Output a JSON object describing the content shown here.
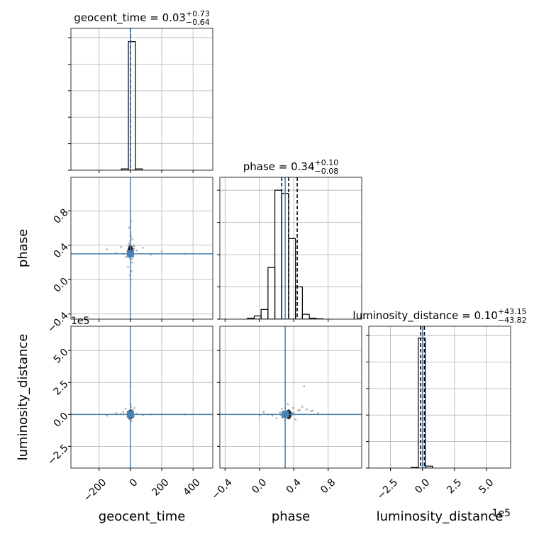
{
  "chart_data": {
    "type": "corner",
    "params": [
      {
        "name": "geocent_time",
        "title": "geocent_time = 0.03",
        "title_sup": "+0.73",
        "title_sub": "−0.64",
        "xlim": [
          -380,
          526
        ],
        "xticks": [
          {
            "value": -200,
            "label": "−200"
          },
          0,
          200,
          400
        ],
        "truth": 0,
        "quantiles": [
          -0.61,
          0.03,
          0.76
        ],
        "hist": {
          "bins": [
            -58,
            -13,
            32,
            77
          ],
          "counts": [
            0.01,
            0.97,
            0.01
          ],
          "ylim": [
            0,
            1.07
          ],
          "yticks": [
            0,
            0.2,
            0.4,
            0.6,
            0.8,
            1.0
          ]
        }
      },
      {
        "name": "phase",
        "title": "phase = 0.34",
        "title_sup": "+0.10",
        "title_sub": "−0.08",
        "xlim": [
          -0.46,
          1.19
        ],
        "xticks": [
          {
            "value": -0.4,
            "label": "−0.4"
          },
          {
            "value": 0,
            "label": "0.0"
          },
          0.4,
          0.8
        ],
        "truth": 0.3,
        "quantiles": [
          0.26,
          0.34,
          0.44
        ],
        "hist": {
          "bins": [
            -0.14,
            -0.06,
            0.02,
            0.1,
            0.18,
            0.26,
            0.34,
            0.42,
            0.5,
            0.58,
            0.66,
            0.74
          ],
          "counts": [
            0.03,
            0.1,
            0.3,
            1.6,
            4.0,
            3.9,
            2.5,
            1.0,
            0.15,
            0.03,
            0.01
          ],
          "ylim": [
            0,
            4.4
          ],
          "yticks": [
            0,
            1,
            2,
            3,
            4
          ]
        }
      },
      {
        "name": "luminosity_distance",
        "title": "luminosity_distance = 0.10",
        "title_sup": "+43.15",
        "title_sub": "−43.82",
        "offset": "1e5",
        "xlim": [
          -4.2,
          6.9
        ],
        "xticks": [
          {
            "value": -2.5,
            "label": "−2.5"
          },
          {
            "value": 0,
            "label": "0.0"
          },
          2.5,
          {
            "value": 5,
            "label": "5.0"
          }
        ],
        "truth": 0,
        "quantiles": [
          -0.15,
          0.0,
          0.15
        ],
        "hist": {
          "bins": [
            -0.89,
            -0.33,
            0.22,
            0.78
          ],
          "counts": [
            0.005,
            0.98,
            0.015
          ],
          "ylim": [
            0,
            1.07
          ],
          "yticks": [
            0,
            0.2,
            0.4,
            0.6,
            0.8,
            1.0
          ]
        }
      }
    ],
    "samples": [
      [
        2,
        -5,
        8,
        -12,
        15,
        0,
        -3,
        5,
        -20,
        22,
        1,
        -8,
        3,
        10,
        -15,
        40,
        -45,
        80,
        -90,
        130,
        -150,
        6,
        -2,
        4,
        -6,
        0,
        12,
        -10,
        25,
        -30,
        200,
        0,
        7,
        -4,
        18,
        2,
        -1,
        9,
        350,
        -60
      ],
      [
        0.32,
        0.35,
        0.28,
        0.4,
        0.3,
        0.45,
        0.25,
        0.38,
        0.33,
        0.36,
        0.55,
        0.6,
        0.68,
        0.2,
        0.15,
        0.34,
        0.3,
        0.37,
        0.31,
        0.29,
        0.35,
        0.1,
        0.05,
        0.5,
        0.42,
        0.33,
        0.47,
        0.27,
        0.39,
        0.26,
        0.33,
        0.52,
        0.3,
        0.36,
        0.4,
        0.0,
        0.62,
        0.24,
        0.3,
        0.38
      ],
      [
        0.05,
        -0.1,
        0.2,
        0.1,
        -0.2,
        0.3,
        -0.05,
        0.15,
        0.0,
        -0.15,
        0.4,
        0.25,
        0.1,
        -0.3,
        -0.1,
        0.05,
        0.2,
        -0.05,
        0.1,
        0.0,
        -0.1,
        0.0,
        0.2,
        0.6,
        -0.4,
        0.8,
        0.35,
        -0.25,
        0.5,
        0.45,
        0.0,
        2.2,
        -0.5,
        0.1,
        0.0,
        -0.1,
        0.3,
        0.15,
        0.0,
        0.05
      ]
    ]
  }
}
